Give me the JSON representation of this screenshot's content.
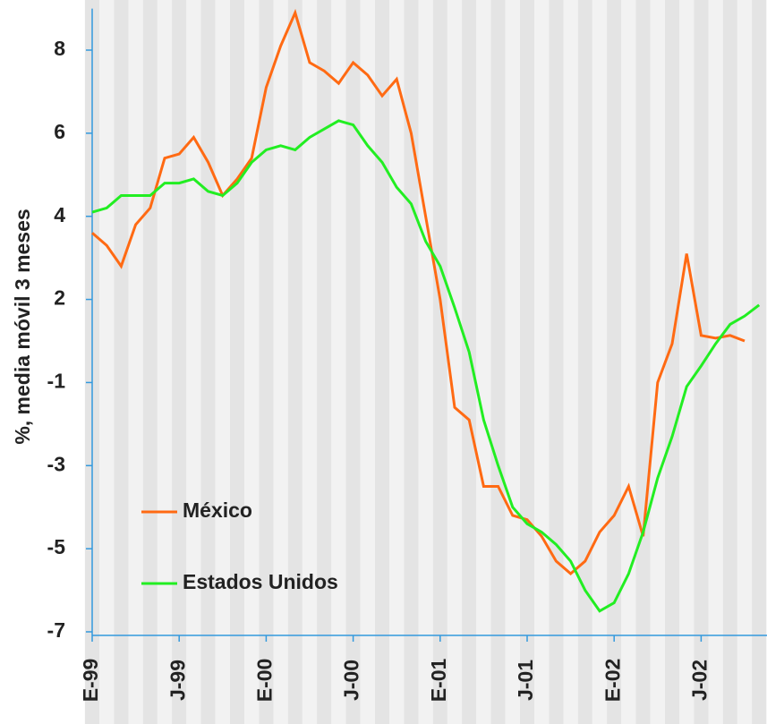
{
  "chart_data": {
    "type": "line",
    "y_label": "%, media móvil 3 meses",
    "categories": [
      "E-99",
      null,
      null,
      null,
      null,
      null,
      "J-99",
      null,
      null,
      null,
      null,
      null,
      "E-00",
      null,
      null,
      null,
      null,
      null,
      "J-00",
      null,
      null,
      null,
      null,
      null,
      "E-01",
      null,
      null,
      null,
      null,
      null,
      "J-01",
      null,
      null,
      null,
      null,
      null,
      "E-02",
      null,
      null,
      null,
      null,
      null,
      "J-02",
      null,
      null,
      null,
      null
    ],
    "series": [
      {
        "name": "México",
        "color": "#ff6a13",
        "values": [
          3.6,
          3.3,
          2.8,
          3.8,
          4.2,
          5.4,
          5.5,
          5.9,
          5.3,
          4.5,
          4.9,
          5.4,
          7.1,
          8.1,
          8.9,
          7.7,
          7.5,
          7.2,
          7.7,
          7.4,
          6.9,
          7.3,
          6.0,
          4.0,
          2.0,
          -1.6,
          -1.9,
          -3.5,
          -3.5,
          -4.2,
          -4.3,
          -4.7,
          -5.3,
          -5.6,
          -5.3,
          -4.6,
          -4.2,
          -3.5,
          -4.7,
          -1.0,
          0.4,
          3.1,
          0.7,
          0.6,
          0.7,
          0.5,
          null
        ]
      },
      {
        "name": "Estados Unidos",
        "color": "#22ee22",
        "values": [
          4.1,
          4.2,
          4.5,
          4.5,
          4.5,
          4.8,
          4.8,
          4.9,
          4.6,
          4.5,
          4.8,
          5.3,
          5.6,
          5.7,
          5.6,
          5.9,
          6.1,
          6.3,
          6.2,
          5.7,
          5.3,
          4.7,
          4.3,
          3.4,
          2.8,
          1.7,
          0.1,
          -1.9,
          -3.0,
          -4.0,
          -4.4,
          -4.6,
          -4.9,
          -5.3,
          -6.0,
          -6.5,
          -6.3,
          -5.6,
          -4.6,
          -3.3,
          -2.3,
          -1.1,
          -0.4,
          0.4,
          1.1,
          1.4,
          1.8
        ]
      }
    ],
    "ylim": [
      -7,
      9
    ],
    "yticks": [
      8,
      6,
      4,
      2,
      -1,
      -3,
      -5,
      -7
    ],
    "axis_color": "#3399dd"
  }
}
